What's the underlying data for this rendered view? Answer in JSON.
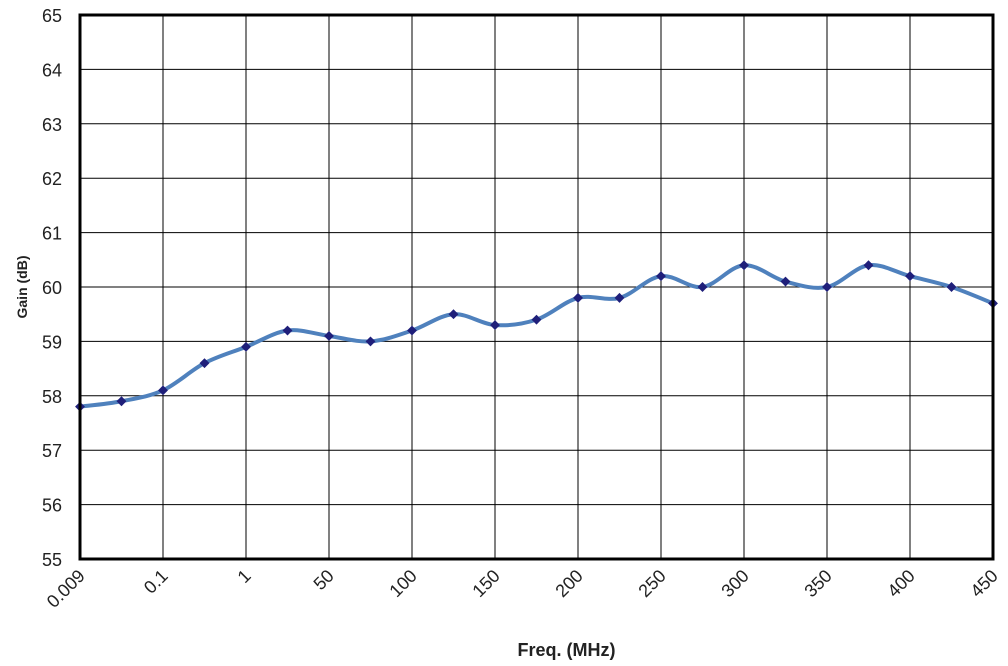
{
  "chart_data": {
    "type": "line",
    "title": "",
    "xlabel": "Freq. (MHz)",
    "ylabel": "Gain (dB)",
    "x_tick_labels": [
      "0.009",
      "0.1",
      "1",
      "50",
      "100",
      "150",
      "200",
      "250",
      "300",
      "350",
      "400",
      "450"
    ],
    "y_tick_labels": [
      "55",
      "56",
      "57",
      "58",
      "59",
      "60",
      "61",
      "62",
      "63",
      "64",
      "65"
    ],
    "ylim": [
      55,
      65
    ],
    "grid": true,
    "legend": "none",
    "series": [
      {
        "x_index": [
          0,
          0.5,
          1,
          1.5,
          2,
          2.5,
          3,
          3.5,
          4,
          4.5,
          5,
          5.5,
          6,
          6.5,
          7,
          7.5,
          8,
          8.5,
          9,
          9.5,
          10,
          10.5,
          11
        ],
        "values": [
          57.8,
          57.9,
          58.1,
          58.6,
          58.9,
          59.2,
          59.1,
          59.0,
          59.2,
          59.5,
          59.3,
          59.4,
          59.8,
          59.8,
          60.2,
          60.0,
          60.4,
          60.1,
          60.0,
          60.4,
          60.2,
          60.0,
          59.7
        ],
        "color": "#4f81bd",
        "marker_color": "#1f1f7a"
      }
    ]
  }
}
